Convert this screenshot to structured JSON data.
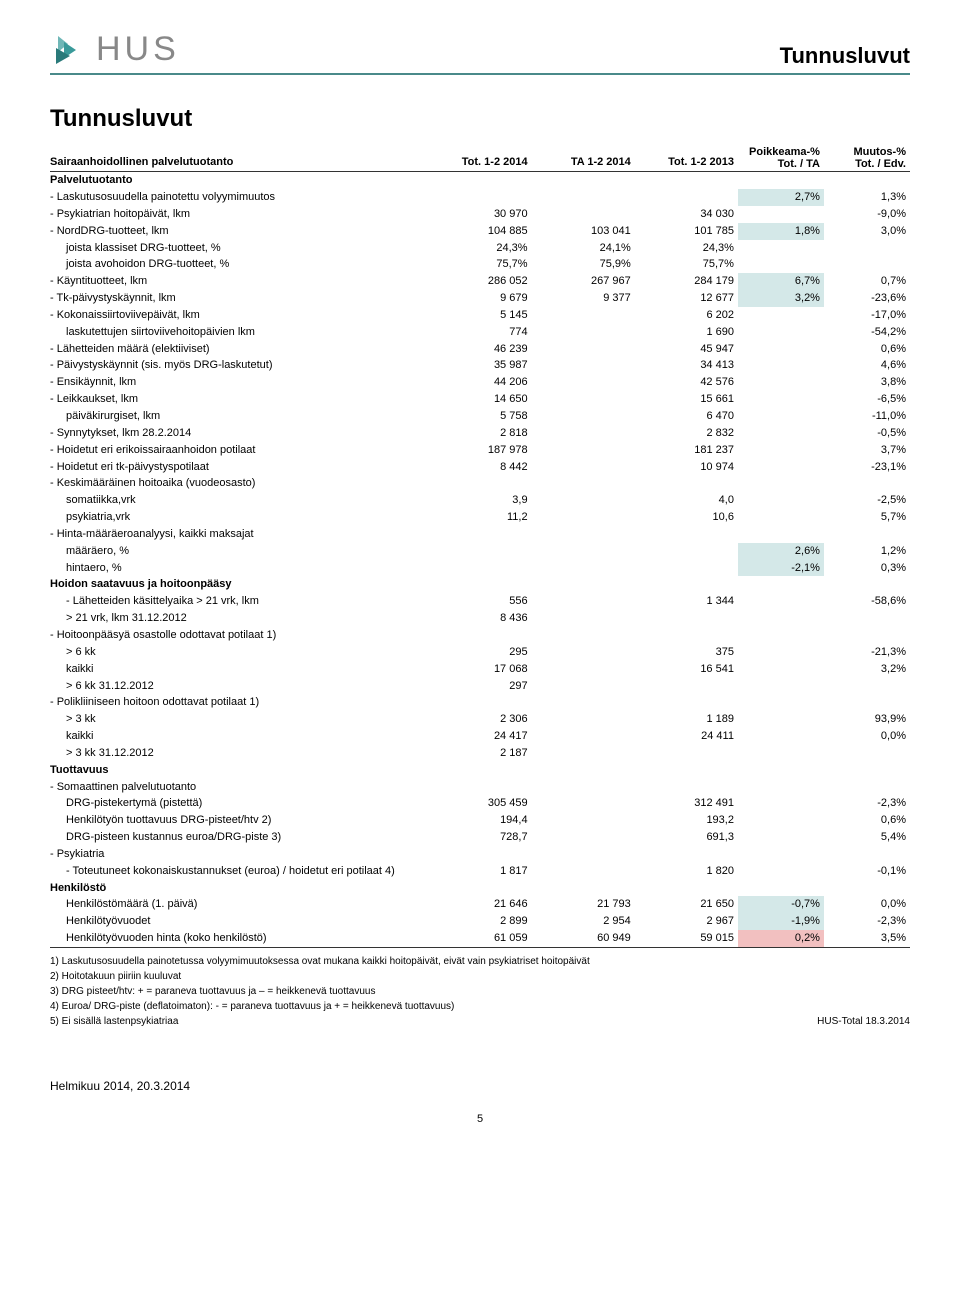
{
  "header": {
    "logo_text": "HUS",
    "top_title": "Tunnusluvut"
  },
  "section_title": "Tunnusluvut",
  "table_headers": {
    "col0": "Sairaanhoidollinen palvelutuotanto",
    "col1": "Tot. 1-2 2014",
    "col2": "TA 1-2 2014",
    "col3": "Tot. 1-2 2013",
    "col4_line1": "Poikkeama-%",
    "col4_line2": "Tot. / TA",
    "col5_line1": "Muutos-%",
    "col5_line2": "Tot. / Edv."
  },
  "groups": {
    "palvelutuotanto": "Palvelutuotanto",
    "hoidon": "Hoidon saatavuus ja hoitoonpääsy",
    "tuottavuus": "Tuottavuus",
    "henkilosto": "Henkilöstö"
  },
  "rows": [
    {
      "label": "- Laskutusosuudella painotettu volyymimuutos",
      "c4": "2,7%",
      "c4cls": "hl-teal",
      "c5": "1,3%"
    },
    {
      "label": "- Psykiatrian hoitopäivät, lkm",
      "c1": "30 970",
      "c3": "34 030",
      "c5": "-9,0%"
    },
    {
      "label": "- NordDRG-tuotteet, lkm",
      "c1": "104 885",
      "c2": "103 041",
      "c3": "101 785",
      "c4": "1,8%",
      "c4cls": "hl-teal",
      "c5": "3,0%"
    },
    {
      "label": "joista klassiset DRG-tuotteet, %",
      "indent": 1,
      "c1": "24,3%",
      "c2": "24,1%",
      "c3": "24,3%"
    },
    {
      "label": "joista avohoidon DRG-tuotteet, %",
      "indent": 1,
      "c1": "75,7%",
      "c2": "75,9%",
      "c3": "75,7%"
    },
    {
      "label": "- Käyntituotteet, lkm",
      "c1": "286 052",
      "c2": "267 967",
      "c3": "284 179",
      "c4": "6,7%",
      "c4cls": "hl-teal",
      "c5": "0,7%"
    },
    {
      "label": "- Tk-päivystyskäynnit, lkm",
      "c1": "9 679",
      "c2": "9 377",
      "c3": "12 677",
      "c4": "3,2%",
      "c4cls": "hl-teal",
      "c5": "-23,6%"
    },
    {
      "label": "- Kokonaissiirtoviivepäivät, lkm",
      "c1": "5 145",
      "c3": "6 202",
      "c5": "-17,0%"
    },
    {
      "label": "laskutettujen siirtoviivehoitopäivien lkm",
      "indent": 1,
      "c1": "774",
      "c3": "1 690",
      "c5": "-54,2%"
    },
    {
      "label": "- Lähetteiden määrä (elektiiviset)",
      "c1": "46 239",
      "c3": "45 947",
      "c5": "0,6%"
    },
    {
      "label": "- Päivystyskäynnit (sis. myös DRG-laskutetut)",
      "c1": "35 987",
      "c3": "34 413",
      "c5": "4,6%"
    },
    {
      "label": "- Ensikäynnit, lkm",
      "c1": "44 206",
      "c3": "42 576",
      "c5": "3,8%"
    },
    {
      "label": "- Leikkaukset, lkm",
      "c1": "14 650",
      "c3": "15 661",
      "c5": "-6,5%"
    },
    {
      "label": "päiväkirurgiset, lkm",
      "indent": 1,
      "c1": "5 758",
      "c3": "6 470",
      "c5": "-11,0%"
    },
    {
      "label": "- Synnytykset, lkm 28.2.2014",
      "c1": "2 818",
      "c3": "2 832",
      "c5": "-0,5%"
    },
    {
      "label": "- Hoidetut eri erikoissairaanhoidon potilaat",
      "c1": "187 978",
      "c3": "181 237",
      "c5": "3,7%"
    },
    {
      "label": "- Hoidetut eri tk-päivystyspotilaat",
      "c1": "8 442",
      "c3": "10 974",
      "c5": "-23,1%"
    },
    {
      "label": "- Keskimääräinen hoitoaika (vuodeosasto)"
    },
    {
      "label": "somatiikka,vrk",
      "indent": 1,
      "c1": "3,9",
      "c3": "4,0",
      "c5": "-2,5%"
    },
    {
      "label": "psykiatria,vrk",
      "indent": 1,
      "c1": "11,2",
      "c3": "10,6",
      "c5": "5,7%"
    },
    {
      "label": "- Hinta-määräeroanalyysi, kaikki maksajat"
    },
    {
      "label": "määräero, %",
      "indent": 1,
      "c4": "2,6%",
      "c4cls": "hl-teal",
      "c5": "1,2%"
    },
    {
      "label": "hintaero, %",
      "indent": 1,
      "c4": "-2,1%",
      "c4cls": "hl-teal",
      "c5": "0,3%"
    }
  ],
  "rows_hoidon": [
    {
      "label": "- Lähetteiden käsittelyaika > 21 vrk, lkm",
      "indent": 1,
      "c1": "556",
      "c3": "1 344",
      "c5": "-58,6%"
    },
    {
      "label": "> 21 vrk, lkm 31.12.2012",
      "indent": 1,
      "c1": "8 436"
    },
    {
      "label": "- Hoitoonpääsyä osastolle odottavat potilaat 1)"
    },
    {
      "label": "> 6 kk",
      "indent": 1,
      "c1": "295",
      "c3": "375",
      "c5": "-21,3%"
    },
    {
      "label": "kaikki",
      "indent": 1,
      "c1": "17 068",
      "c3": "16 541",
      "c5": "3,2%"
    },
    {
      "label": "> 6 kk 31.12.2012",
      "indent": 1,
      "c1": "297"
    },
    {
      "label": "- Polikliiniseen hoitoon odottavat potilaat 1)"
    },
    {
      "label": "> 3 kk",
      "indent": 1,
      "c1": "2 306",
      "c3": "1 189",
      "c5": "93,9%"
    },
    {
      "label": "kaikki",
      "indent": 1,
      "c1": "24 417",
      "c3": "24 411",
      "c5": "0,0%"
    },
    {
      "label": "> 3 kk 31.12.2012",
      "indent": 1,
      "c1": "2 187"
    }
  ],
  "rows_tuottavuus": [
    {
      "label": "- Somaattinen palvelutuotanto"
    },
    {
      "label": "DRG-pistekertymä (pistettä)",
      "indent": 1,
      "c1": "305 459",
      "c3": "312 491",
      "c5": "-2,3%"
    },
    {
      "label": "Henkilötyön tuottavuus DRG-pisteet/htv 2)",
      "indent": 1,
      "c1": "194,4",
      "c3": "193,2",
      "c5": "0,6%"
    },
    {
      "label": "DRG-pisteen kustannus euroa/DRG-piste 3)",
      "indent": 1,
      "c1": "728,7",
      "c3": "691,3",
      "c5": "5,4%"
    },
    {
      "label": "- Psykiatria"
    },
    {
      "label": "- Toteutuneet kokonaiskustannukset (euroa) / hoidetut eri potilaat 4)",
      "indent": 1,
      "c1": "1 817",
      "c3": "1 820",
      "c5": "-0,1%"
    }
  ],
  "rows_henkilosto": [
    {
      "label": "Henkilöstömäärä (1. päivä)",
      "indent": 1,
      "c1": "21 646",
      "c2": "21 793",
      "c3": "21 650",
      "c4": "-0,7%",
      "c4cls": "hl-teal",
      "c5": "0,0%"
    },
    {
      "label": "Henkilötyövuodet",
      "indent": 1,
      "c1": "2 899",
      "c2": "2 954",
      "c3": "2 967",
      "c4": "-1,9%",
      "c4cls": "hl-teal",
      "c5": "-2,3%"
    },
    {
      "label": "Henkilötyövuoden hinta (koko henkilöstö)",
      "indent": 1,
      "c1": "61 059",
      "c2": "60 949",
      "c3": "59 015",
      "c4": "0,2%",
      "c4cls": "hl-red",
      "c5": "3,5%",
      "underline": true
    }
  ],
  "footnotes": [
    "1) Laskutusosuudella painotetussa volyymimuutoksessa ovat mukana kaikki hoitopäivät, eivät vain psykiatriset hoitopäivät",
    "2) Hoitotakuun piiriin kuuluvat",
    "3) DRG pisteet/htv: + = paraneva tuottavuus ja – = heikkenevä tuottavuus",
    "4) Euroa/ DRG-piste (deflatoimaton): - = paraneva tuottavuus ja + = heikkenevä tuottavuus)",
    "5) Ei sisällä lastenpsykiatriaa"
  ],
  "footnote_right": "HUS-Total 18.3.2014",
  "footer": "Helmikuu 2014, 20.3.2014",
  "page_number": "5"
}
